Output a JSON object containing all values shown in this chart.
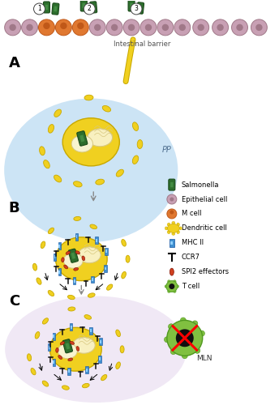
{
  "fig_width": 3.44,
  "fig_height": 5.0,
  "dpi": 100,
  "bg_color": "#ffffff",
  "section_A_bg": "#cce4f5",
  "section_C_bg": "#f0e8f5",
  "epithelial_cell_color": "#c8a0b4",
  "epithelial_cell_dark": "#a07888",
  "m_cell_color": "#e07830",
  "m_cell_dark": "#c05818",
  "salmonella_color": "#2d6e2d",
  "salmonella_light": "#5aaa5a",
  "dc_body_color": "#f0d020",
  "dc_body_dark": "#c8a800",
  "nucleus_color": "#f8f0c0",
  "nucleus_dark": "#d8c880",
  "vacuole_color": "#f8f4d0",
  "mhc_color": "#4090d0",
  "spi2_color": "#d04020",
  "tcell_color": "#80c040",
  "tcell_dark": "#509820",
  "tcell_nucleus": "#101010",
  "label_A": "A",
  "label_B": "B",
  "label_C": "C",
  "pp_text": "PP",
  "mln_text": "MLN",
  "intestinal_barrier_text": "Intestinal barrier",
  "legend_items": [
    "Salmonella",
    "Epithelial cell",
    "M cell",
    "Dendritic cell",
    "MHC II",
    "CCR7",
    "SPI2 effectors",
    "T cell"
  ]
}
